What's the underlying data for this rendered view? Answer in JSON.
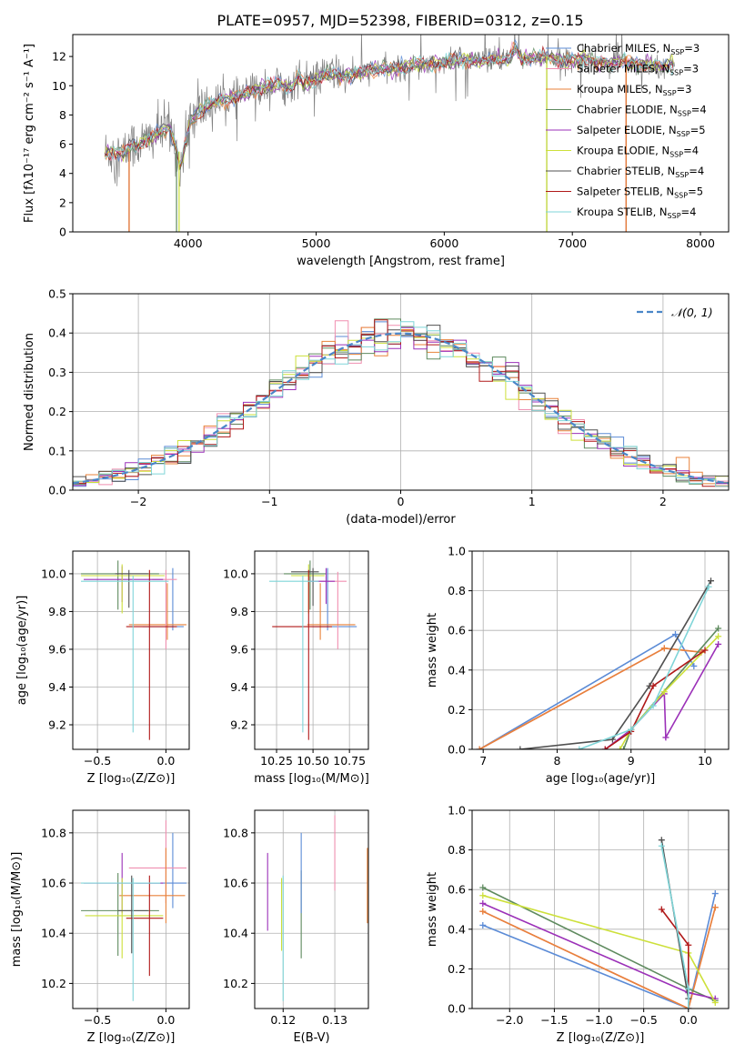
{
  "figure": {
    "title": "PLATE=0957, MJD=52398, FIBERID=0312, z=0.15"
  },
  "colors": {
    "Chabrier MILES": "#5b8bd6",
    "Salpeter MILES": "#f08fb0",
    "Kroupa MILES": "#e8823a",
    "Chabrier ELODIE": "#5e8a5e",
    "Salpeter ELODIE": "#9b30b8",
    "Kroupa ELODIE": "#cde03a",
    "Chabrier STELIB": "#505050",
    "Salpeter STELIB": "#b01818",
    "Kroupa STELIB": "#7fd5d8",
    "data": "#808080",
    "gaussian": "#4a86c8"
  },
  "chart_data": [
    {
      "id": "spectrum",
      "type": "line",
      "xlabel": "wavelength [Angstrom, rest frame]",
      "ylabel": "Flux [fλ10⁻¹⁷ erg cm⁻² s⁻¹ A⁻¹]",
      "xlim": [
        3100,
        8220
      ],
      "ylim": [
        0,
        13.5
      ],
      "xticks": [
        4000,
        5000,
        6000,
        7000,
        8000
      ],
      "yticks": [
        0,
        2,
        4,
        6,
        8,
        10,
        12
      ],
      "grid": false,
      "legend_position": "top-right",
      "legend": [
        {
          "label": "Chabrier MILES, N",
          "sub": "SSP",
          "tail": "=3",
          "color": "Chabrier MILES"
        },
        {
          "label": "Salpeter MILES, N",
          "sub": "SSP",
          "tail": "=3",
          "color": "Salpeter MILES"
        },
        {
          "label": "Kroupa MILES, N",
          "sub": "SSP",
          "tail": "=3",
          "color": "Kroupa MILES"
        },
        {
          "label": "Chabrier ELODIE, N",
          "sub": "SSP",
          "tail": "=4",
          "color": "Chabrier ELODIE"
        },
        {
          "label": "Salpeter ELODIE, N",
          "sub": "SSP",
          "tail": "=5",
          "color": "Salpeter ELODIE"
        },
        {
          "label": "Kroupa ELODIE, N",
          "sub": "SSP",
          "tail": "=4",
          "color": "Kroupa ELODIE"
        },
        {
          "label": "Chabrier STELIB, N",
          "sub": "SSP",
          "tail": "=4",
          "color": "Chabrier STELIB"
        },
        {
          "label": "Salpeter STELIB, N",
          "sub": "SSP",
          "tail": "=5",
          "color": "Salpeter STELIB"
        },
        {
          "label": "Kroupa STELIB, N",
          "sub": "SSP",
          "tail": "=4",
          "color": "Kroupa STELIB"
        }
      ],
      "data_series": {
        "name": "data",
        "x": [
          3350,
          3420,
          3500,
          3560,
          3600,
          3700,
          3750,
          3800,
          3850,
          3900,
          3940,
          3980,
          4020,
          4100,
          4200,
          4300,
          4400,
          4500,
          4600,
          4700,
          4800,
          4860,
          4900,
          5000,
          5100,
          5200,
          5300,
          5400,
          5500,
          5600,
          5700,
          5800,
          5900,
          6000,
          6100,
          6200,
          6300,
          6400,
          6500,
          6560,
          6600,
          6700,
          6800,
          6900,
          7000,
          7100,
          7200,
          7300,
          7400,
          7500,
          7600,
          7700,
          7800
        ],
        "y": [
          5.4,
          5.5,
          5.3,
          6.0,
          5.9,
          6.4,
          6.7,
          6.9,
          7.2,
          6.0,
          4.4,
          6.0,
          7.6,
          8.4,
          8.8,
          9.1,
          9.3,
          9.6,
          9.9,
          10.2,
          9.8,
          10.7,
          10.1,
          10.4,
          10.9,
          10.6,
          10.8,
          11.0,
          11.2,
          11.1,
          11.3,
          11.5,
          11.4,
          11.6,
          11.7,
          11.8,
          11.6,
          11.9,
          11.7,
          12.6,
          11.8,
          11.9,
          12.0,
          11.8,
          11.7,
          11.9,
          11.6,
          11.5,
          11.7,
          11.4,
          11.5,
          11.3,
          11.4
        ]
      },
      "range_limits": [
        {
          "series": "Chabrier ELODIE",
          "x_start": 3910,
          "x_end": 6800
        },
        {
          "series": "Kroupa ELODIE",
          "x_start": 3930,
          "x_end": 6800
        },
        {
          "series": "Salpeter STELIB",
          "x_start": 3540,
          "x_end": 7420
        },
        {
          "series": "Kroupa MILES",
          "x_start": 3540,
          "x_end": 7420
        }
      ]
    },
    {
      "id": "residuals",
      "type": "histogram",
      "xlabel": "(data-model)/error",
      "ylabel": "Normed distribution",
      "xlim": [
        -2.5,
        2.5
      ],
      "ylim": [
        0,
        0.5
      ],
      "xticks": [
        -2,
        -1,
        0,
        1,
        2
      ],
      "yticks": [
        0.0,
        0.1,
        0.2,
        0.3,
        0.4,
        0.5
      ],
      "grid": true,
      "legend_position": "top-right",
      "legend": [
        {
          "label": "𝒩(0, 1)",
          "color": "gaussian",
          "style": "dashed"
        }
      ],
      "bin_width": 0.1,
      "bins_start": -2.5,
      "bin_count": 50
    },
    {
      "id": "age-vs-Z",
      "type": "errorbar",
      "xlabel": "Z [log₁₀(Z/Z⊙)]",
      "ylabel": "age  [log₁₀(age/yr)]",
      "xlim": [
        -0.68,
        0.17
      ],
      "ylim": [
        9.07,
        10.12
      ],
      "xticks": [
        -0.5,
        0.0
      ],
      "yticks": [
        9.2,
        9.4,
        9.6,
        9.8,
        10.0
      ],
      "grid": true,
      "points": [
        {
          "series": "Chabrier MILES",
          "x": 0.05,
          "y": 9.72,
          "xerr": [
            0.22,
            0.08
          ],
          "yerr": [
            0.02,
            0.31
          ]
        },
        {
          "series": "Kroupa MILES",
          "x": 0.01,
          "y": 9.73,
          "xerr": [
            0.28,
            0.14
          ],
          "yerr": [
            0.08,
            0.22
          ]
        },
        {
          "series": "Salpeter MILES",
          "x": 0.0,
          "y": 9.97,
          "xerr": [
            0.1,
            0.08
          ],
          "yerr": [
            0.37,
            0.05
          ]
        },
        {
          "series": "Chabrier ELODIE",
          "x": -0.35,
          "y": 10.0,
          "xerr": [
            0.27,
            0.3
          ],
          "yerr": [
            0.19,
            0.07
          ]
        },
        {
          "series": "Salpeter ELODIE",
          "x": -0.32,
          "y": 9.97,
          "xerr": [
            0.28,
            0.3
          ],
          "yerr": [
            0.12,
            0.07
          ]
        },
        {
          "series": "Kroupa ELODIE",
          "x": -0.32,
          "y": 9.99,
          "xerr": [
            0.3,
            0.31
          ],
          "yerr": [
            0.2,
            0.06
          ]
        },
        {
          "series": "Chabrier STELIB",
          "x": -0.27,
          "y": 10.0,
          "xerr": [
            0.1,
            0.14
          ],
          "yerr": [
            0.18,
            0.02
          ]
        },
        {
          "series": "Salpeter STELIB",
          "x": -0.12,
          "y": 9.72,
          "xerr": [
            0.17,
            0.2
          ],
          "yerr": [
            0.6,
            0.3
          ]
        },
        {
          "series": "Kroupa STELIB",
          "x": -0.24,
          "y": 9.96,
          "xerr": [
            0.38,
            0.26
          ],
          "yerr": [
            0.8,
            0.03
          ]
        }
      ]
    },
    {
      "id": "age-vs-mass",
      "type": "errorbar",
      "xlabel": "mass [log₁₀(M/M⊙)]",
      "ylabel": "",
      "xlim": [
        10.1,
        10.88
      ],
      "ylim": [
        9.07,
        10.12
      ],
      "xticks": [
        10.25,
        10.5,
        10.75
      ],
      "yticks": [
        9.2,
        9.4,
        9.6,
        9.8,
        10.0
      ],
      "grid": true,
      "points": [
        {
          "series": "Chabrier MILES",
          "x": 10.6,
          "y": 9.72,
          "xerr": [
            0.1,
            0.2
          ],
          "yerr": [
            0.02,
            0.31
          ]
        },
        {
          "series": "Salpeter MILES",
          "x": 10.67,
          "y": 9.96,
          "xerr": [
            0.14,
            0.06
          ],
          "yerr": [
            0.36,
            0.05
          ]
        },
        {
          "series": "Kroupa MILES",
          "x": 10.55,
          "y": 9.73,
          "xerr": [
            0.09,
            0.24
          ],
          "yerr": [
            0.08,
            0.22
          ]
        },
        {
          "series": "Chabrier ELODIE",
          "x": 10.48,
          "y": 10.0,
          "xerr": [
            0.18,
            0.11
          ],
          "yerr": [
            0.19,
            0.07
          ]
        },
        {
          "series": "Salpeter ELODIE",
          "x": 10.59,
          "y": 9.96,
          "xerr": [
            0.11,
            0.06
          ],
          "yerr": [
            0.12,
            0.07
          ]
        },
        {
          "series": "Kroupa ELODIE",
          "x": 10.47,
          "y": 9.99,
          "xerr": [
            0.12,
            0.11
          ],
          "yerr": [
            0.2,
            0.06
          ]
        },
        {
          "series": "Chabrier STELIB",
          "x": 10.5,
          "y": 10.01,
          "xerr": [
            0.15,
            0.04
          ],
          "yerr": [
            0.18,
            0.02
          ]
        },
        {
          "series": "Salpeter STELIB",
          "x": 10.47,
          "y": 9.72,
          "xerr": [
            0.25,
            0.16
          ],
          "yerr": [
            0.6,
            0.3
          ]
        },
        {
          "series": "Kroupa STELIB",
          "x": 10.43,
          "y": 9.96,
          "xerr": [
            0.23,
            0.11
          ],
          "yerr": [
            0.8,
            0.03
          ]
        }
      ]
    },
    {
      "id": "massweight-vs-age",
      "type": "line",
      "xlabel": "age  [log₁₀(age/yr)]",
      "ylabel": "mass weight",
      "xlim": [
        6.85,
        10.32
      ],
      "ylim": [
        0,
        1
      ],
      "xticks": [
        7,
        8,
        9,
        10
      ],
      "yticks": [
        0.0,
        0.2,
        0.4,
        0.6,
        0.8,
        1.0
      ],
      "grid": true,
      "series": [
        {
          "name": "Chabrier MILES",
          "x": [
            6.95,
            9.6,
            9.85
          ],
          "y": [
            0.0,
            0.58,
            0.42
          ]
        },
        {
          "name": "Salpeter MILES",
          "x": [
            6.95,
            9.45,
            9.95
          ],
          "y": [
            0.0,
            0.51,
            0.49
          ]
        },
        {
          "name": "Kroupa MILES",
          "x": [
            6.95,
            9.45,
            9.95
          ],
          "y": [
            0.0,
            0.51,
            0.49
          ]
        },
        {
          "name": "Chabrier ELODIE",
          "x": [
            8.9,
            9.0,
            10.18
          ],
          "y": [
            0.0,
            0.1,
            0.61
          ]
        },
        {
          "name": "Salpeter ELODIE",
          "x": [
            8.65,
            9.0,
            9.45,
            9.47,
            10.18
          ],
          "y": [
            0.0,
            0.1,
            0.28,
            0.06,
            0.53
          ]
        },
        {
          "name": "Kroupa ELODIE",
          "x": [
            8.85,
            9.0,
            9.45,
            10.18
          ],
          "y": [
            0.0,
            0.1,
            0.29,
            0.57
          ]
        },
        {
          "name": "Chabrier STELIB",
          "x": [
            7.5,
            8.75,
            9.25,
            10.08
          ],
          "y": [
            0.0,
            0.05,
            0.32,
            0.85
          ]
        },
        {
          "name": "Salpeter STELIB",
          "x": [
            8.65,
            9.0,
            9.3,
            10.0
          ],
          "y": [
            0.0,
            0.09,
            0.32,
            0.5
          ]
        },
        {
          "name": "Kroupa STELIB",
          "x": [
            8.3,
            9.0,
            9.3,
            10.05
          ],
          "y": [
            0.0,
            0.1,
            0.22,
            0.82
          ]
        }
      ]
    },
    {
      "id": "mass-vs-Z",
      "type": "errorbar",
      "xlabel": "Z [log₁₀(Z/Z⊙)]",
      "ylabel": "mass [log₁₀(M/M⊙)]",
      "xlim": [
        -0.68,
        0.17
      ],
      "ylim": [
        10.1,
        10.89
      ],
      "xticks": [
        -0.5,
        0.0
      ],
      "yticks": [
        10.2,
        10.4,
        10.6,
        10.8
      ],
      "grid": true,
      "points": [
        {
          "series": "Chabrier MILES",
          "x": 0.05,
          "y": 10.6,
          "xerr": [
            0.27,
            0.1
          ],
          "yerr": [
            0.1,
            0.2
          ]
        },
        {
          "series": "Salpeter MILES",
          "x": 0.0,
          "y": 10.66,
          "xerr": [
            0.27,
            0.15
          ],
          "yerr": [
            0.14,
            0.19
          ]
        },
        {
          "series": "Kroupa MILES",
          "x": 0.0,
          "y": 10.55,
          "xerr": [
            0.34,
            0.14
          ],
          "yerr": [
            0.11,
            0.19
          ]
        },
        {
          "series": "Chabrier ELODIE",
          "x": -0.35,
          "y": 10.49,
          "xerr": [
            0.27,
            0.3
          ],
          "yerr": [
            0.18,
            0.15
          ]
        },
        {
          "series": "Salpeter ELODIE",
          "x": -0.32,
          "y": 10.6,
          "xerr": [
            0.28,
            0.3
          ],
          "yerr": [
            0.12,
            0.12
          ]
        },
        {
          "series": "Kroupa ELODIE",
          "x": -0.32,
          "y": 10.47,
          "xerr": [
            0.27,
            0.3
          ],
          "yerr": [
            0.17,
            0.15
          ]
        },
        {
          "series": "Chabrier STELIB",
          "x": -0.25,
          "y": 10.49,
          "xerr": [
            0.1,
            0.12
          ],
          "yerr": [
            0.17,
            0.14
          ]
        },
        {
          "series": "Salpeter STELIB",
          "x": -0.12,
          "y": 10.46,
          "xerr": [
            0.17,
            0.1
          ],
          "yerr": [
            0.23,
            0.17
          ]
        },
        {
          "series": "Kroupa STELIB",
          "x": -0.24,
          "y": 10.6,
          "xerr": [
            0.38,
            0.2
          ],
          "yerr": [
            0.47,
            0.02
          ]
        }
      ]
    },
    {
      "id": "mass-vs-ebv",
      "type": "errorbar",
      "xlabel": "E(B-V)",
      "ylabel": "",
      "xlim": [
        0.1145,
        0.1365
      ],
      "ylim": [
        10.1,
        10.89
      ],
      "xticks": [
        0.12,
        0.13
      ],
      "yticks": [
        10.2,
        10.4,
        10.6,
        10.8
      ],
      "grid": true,
      "points": [
        {
          "series": "Salpeter ELODIE",
          "x": 0.117,
          "y": 10.57,
          "yerr": [
            0.16,
            0.15
          ]
        },
        {
          "series": "Kroupa ELODIE",
          "x": 0.1197,
          "y": 10.5,
          "yerr": [
            0.17,
            0.12
          ]
        },
        {
          "series": "Kroupa STELIB",
          "x": 0.12,
          "y": 10.42,
          "yerr": [
            0.29,
            0.21
          ]
        },
        {
          "series": "Chabrier ELODIE",
          "x": 0.1235,
          "y": 10.47,
          "yerr": [
            0.17,
            0.18
          ]
        },
        {
          "series": "Chabrier MILES",
          "x": 0.1235,
          "y": 10.6,
          "yerr": [
            0.12,
            0.2
          ]
        },
        {
          "series": "Salpeter MILES",
          "x": 0.13,
          "y": 10.72,
          "yerr": [
            0.15,
            0.15
          ]
        },
        {
          "series": "Kroupa MILES",
          "x": 0.1363,
          "y": 10.59,
          "yerr": [
            0.15,
            0.15
          ]
        }
      ]
    },
    {
      "id": "massweight-vs-Z",
      "type": "line",
      "xlabel": "Z [log₁₀(Z/Z⊙)]",
      "ylabel": "mass weight",
      "xlim": [
        -2.42,
        0.45
      ],
      "ylim": [
        0,
        1
      ],
      "xticks": [
        -2.0,
        -1.5,
        -1.0,
        -0.5,
        0.0
      ],
      "yticks": [
        0.0,
        0.2,
        0.4,
        0.6,
        0.8,
        1.0
      ],
      "grid": true,
      "series": [
        {
          "name": "Chabrier MILES",
          "x": [
            -2.3,
            0.0,
            0.3
          ],
          "y": [
            0.42,
            0.0,
            0.58
          ]
        },
        {
          "name": "Salpeter MILES",
          "x": [
            -2.3,
            0.0,
            0.3
          ],
          "y": [
            0.49,
            0.0,
            0.51
          ]
        },
        {
          "name": "Kroupa MILES",
          "x": [
            -2.3,
            0.0,
            0.3
          ],
          "y": [
            0.49,
            0.0,
            0.51
          ]
        },
        {
          "name": "Chabrier ELODIE",
          "x": [
            -2.3,
            0.0,
            0.3
          ],
          "y": [
            0.61,
            0.1,
            0.04
          ]
        },
        {
          "name": "Salpeter ELODIE",
          "x": [
            -2.3,
            0.0,
            0.3
          ],
          "y": [
            0.53,
            0.08,
            0.05
          ]
        },
        {
          "name": "Kroupa ELODIE",
          "x": [
            -2.3,
            0.0,
            0.3
          ],
          "y": [
            0.57,
            0.28,
            0.03
          ]
        },
        {
          "name": "Chabrier STELIB",
          "x": [
            -0.3,
            0.0,
            0.0
          ],
          "y": [
            0.85,
            0.05,
            0.1
          ]
        },
        {
          "name": "Salpeter STELIB",
          "x": [
            -0.3,
            0.0,
            0.0
          ],
          "y": [
            0.5,
            0.32,
            0.0
          ]
        },
        {
          "name": "Kroupa STELIB",
          "x": [
            -0.3,
            0.0,
            0.0
          ],
          "y": [
            0.82,
            0.1,
            0.0
          ]
        }
      ]
    }
  ]
}
